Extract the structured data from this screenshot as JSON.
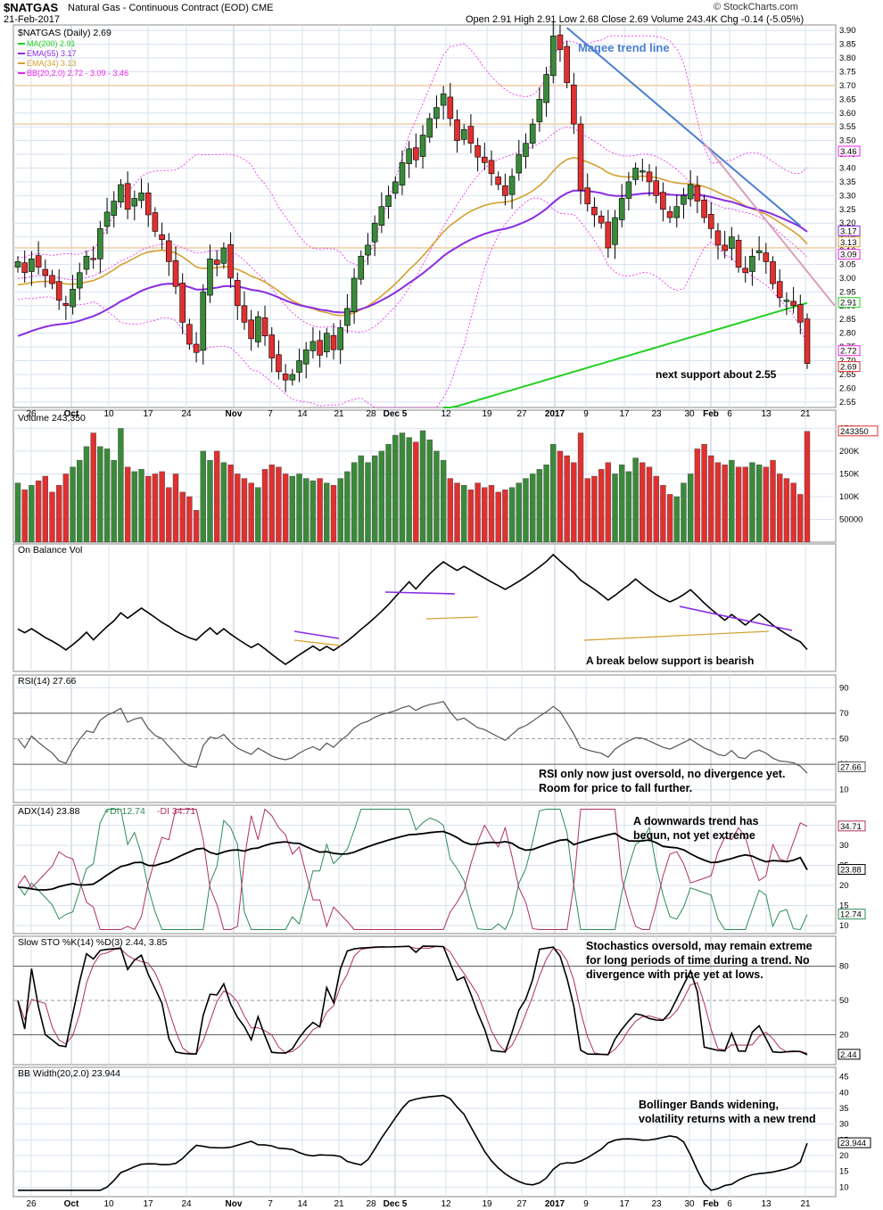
{
  "header": {
    "symbol": "$NATGAS",
    "description": "Natural Gas - Continuous Contract (EOD)",
    "exchange": "CME",
    "date": "21-Feb-2017",
    "brand": "© StockCharts.com",
    "ohlc": "Open 2.91  High 2.91  Low 2.68  Close 2.69  Volume 243.4K  Chg -0.14 (-5.05%)"
  },
  "colors": {
    "up": "#3a8a3a",
    "down": "#e03030",
    "ma200": "#22d022",
    "ema55": "#8a2be2",
    "ema34": "#d4a030",
    "bb": "#ee22ee",
    "magee": "#4a7fd0",
    "pink": "#d8a0b8",
    "grid": "#d8e2f0",
    "plus_di": "#2e8b57",
    "minus_di": "#b03060"
  },
  "price_panel": {
    "label": "$NATGAS (Daily) 2.69",
    "legend": [
      "MA(200) 2.91",
      "EMA(55) 3.17",
      "EMA(34) 3.13",
      "BB(20,2.0) 2.72 - 3.09 - 3.46"
    ],
    "axis_ticks": [
      "3.90",
      "3.85",
      "3.80",
      "3.75",
      "3.70",
      "3.65",
      "3.60",
      "3.55",
      "3.50",
      "3.45",
      "3.40",
      "3.35",
      "3.30",
      "3.25",
      "3.20",
      "3.15",
      "3.10",
      "3.05",
      "3.00",
      "2.95",
      "2.90",
      "2.85",
      "2.80",
      "2.75",
      "2.70",
      "2.65",
      "2.60",
      "2.55"
    ],
    "value_tags": [
      "3.46",
      "3.17",
      "3.13",
      "3.09",
      "2.91",
      "2.72",
      "2.69"
    ],
    "trend_label": "Magee trend line",
    "support_note": "next support about 2.55",
    "horizontal_levels": [
      3.7,
      3.56,
      3.11
    ]
  },
  "x_axis": {
    "labels": [
      "26",
      "Oct",
      "10",
      "17",
      "24",
      "Nov",
      "7",
      "14",
      "21",
      "28",
      "Dec 5",
      "12",
      "19",
      "27",
      "2017",
      "9",
      "17",
      "23",
      "30",
      "Feb",
      "6",
      "13",
      "21"
    ]
  },
  "volume_panel": {
    "label": "Volume 243,350",
    "axis_ticks": [
      "250K",
      "200K",
      "150K",
      "100K",
      "50000"
    ],
    "value_tag": "243350"
  },
  "obv_panel": {
    "label": "On Balance Vol",
    "note": "A break below support is bearish"
  },
  "rsi_panel": {
    "label": "RSI(14) 27.66",
    "axis_ticks": [
      "90",
      "70",
      "50",
      "30",
      "10"
    ],
    "value_tag": "27.66",
    "note_line1": "RSI only now just oversold, no divergence yet.",
    "note_line2": "Room for price to fall further."
  },
  "adx_panel": {
    "label": "ADX(14) 23.88",
    "plus_label": "+DI 12.74",
    "minus_label": "-DI 34.71",
    "axis_ticks": [
      "35",
      "30",
      "25",
      "20",
      "15",
      "10"
    ],
    "value_tags": [
      "34.71",
      "23.88",
      "12.74"
    ],
    "note_line1": "A downwards trend has",
    "note_line2": "begun, not yet extreme"
  },
  "sto_panel": {
    "label": "Slow STO %K(14) %D(3) 2.44, 3.85",
    "axis_ticks": [
      "80",
      "50",
      "20"
    ],
    "value_tag": "2.44",
    "note_line1": "Stochastics oversold, may remain extreme",
    "note_line2": "for long periods of time during a trend. No",
    "note_line3": "divergence with price yet at lows."
  },
  "bbw_panel": {
    "label": "BB Width(20,2.0) 23.944",
    "axis_ticks": [
      "45",
      "40",
      "35",
      "30",
      "25",
      "20",
      "15",
      "10"
    ],
    "value_tag": "23.944",
    "note_line1": "Bollinger Bands widening,",
    "note_line2": "volatility returns with a new trend"
  },
  "chart_data": {
    "type": "candlestick",
    "title": "$NATGAS (Daily)",
    "series": [
      {
        "name": "close",
        "values": [
          3.06,
          3.02,
          3.07,
          3.04,
          3.01,
          2.98,
          2.92,
          2.9,
          2.96,
          3.02,
          3.08,
          3.07,
          3.18,
          3.24,
          3.28,
          3.34,
          3.25,
          3.29,
          3.31,
          3.23,
          3.17,
          3.14,
          3.06,
          2.97,
          2.84,
          2.76,
          2.73,
          2.95,
          3.07,
          3.05,
          3.11,
          3.0,
          2.9,
          2.84,
          2.78,
          2.86,
          2.79,
          2.71,
          2.66,
          2.63,
          2.65,
          2.7,
          2.74,
          2.77,
          2.72,
          2.8,
          2.74,
          2.82,
          2.89,
          3.0,
          3.08,
          3.12,
          3.2,
          3.26,
          3.3,
          3.35,
          3.42,
          3.47,
          3.43,
          3.52,
          3.58,
          3.62,
          3.67,
          3.58,
          3.5,
          3.54,
          3.49,
          3.44,
          3.42,
          3.38,
          3.34,
          3.3,
          3.37,
          3.45,
          3.49,
          3.56,
          3.65,
          3.74,
          3.88,
          3.83,
          3.71,
          3.56,
          3.32,
          3.27,
          3.23,
          3.2,
          3.11,
          3.22,
          3.29,
          3.35,
          3.4,
          3.39,
          3.35,
          3.3,
          3.25,
          3.22,
          3.26,
          3.3,
          3.34,
          3.28,
          3.22,
          3.18,
          3.12,
          3.1,
          3.15,
          3.04,
          3.02,
          3.08,
          3.1,
          3.06,
          2.98,
          2.93,
          2.92,
          2.9,
          2.84,
          2.69
        ]
      },
      {
        "name": "volume",
        "values": [
          130,
          115,
          125,
          135,
          145,
          110,
          125,
          150,
          165,
          180,
          210,
          240,
          210,
          205,
          180,
          250,
          165,
          155,
          160,
          145,
          150,
          155,
          120,
          150,
          110,
          100,
          70,
          200,
          180,
          200,
          175,
          170,
          150,
          140,
          130,
          120,
          160,
          170,
          165,
          150,
          145,
          150,
          140,
          135,
          140,
          130,
          125,
          140,
          155,
          175,
          190,
          175,
          190,
          200,
          215,
          235,
          240,
          230,
          220,
          245,
          225,
          200,
          180,
          140,
          130,
          125,
          115,
          130,
          120,
          125,
          110,
          115,
          120,
          130,
          140,
          150,
          160,
          170,
          215,
          200,
          190,
          175,
          240,
          140,
          145,
          160,
          175,
          150,
          170,
          155,
          185,
          175,
          165,
          145,
          125,
          105,
          100,
          130,
          150,
          205,
          215,
          190,
          175,
          170,
          180,
          165,
          165,
          175,
          170,
          165,
          180,
          150,
          140,
          130,
          105,
          243.35
        ]
      }
    ],
    "ylim": [
      2.53,
      3.92
    ],
    "volume_unit": "K"
  }
}
